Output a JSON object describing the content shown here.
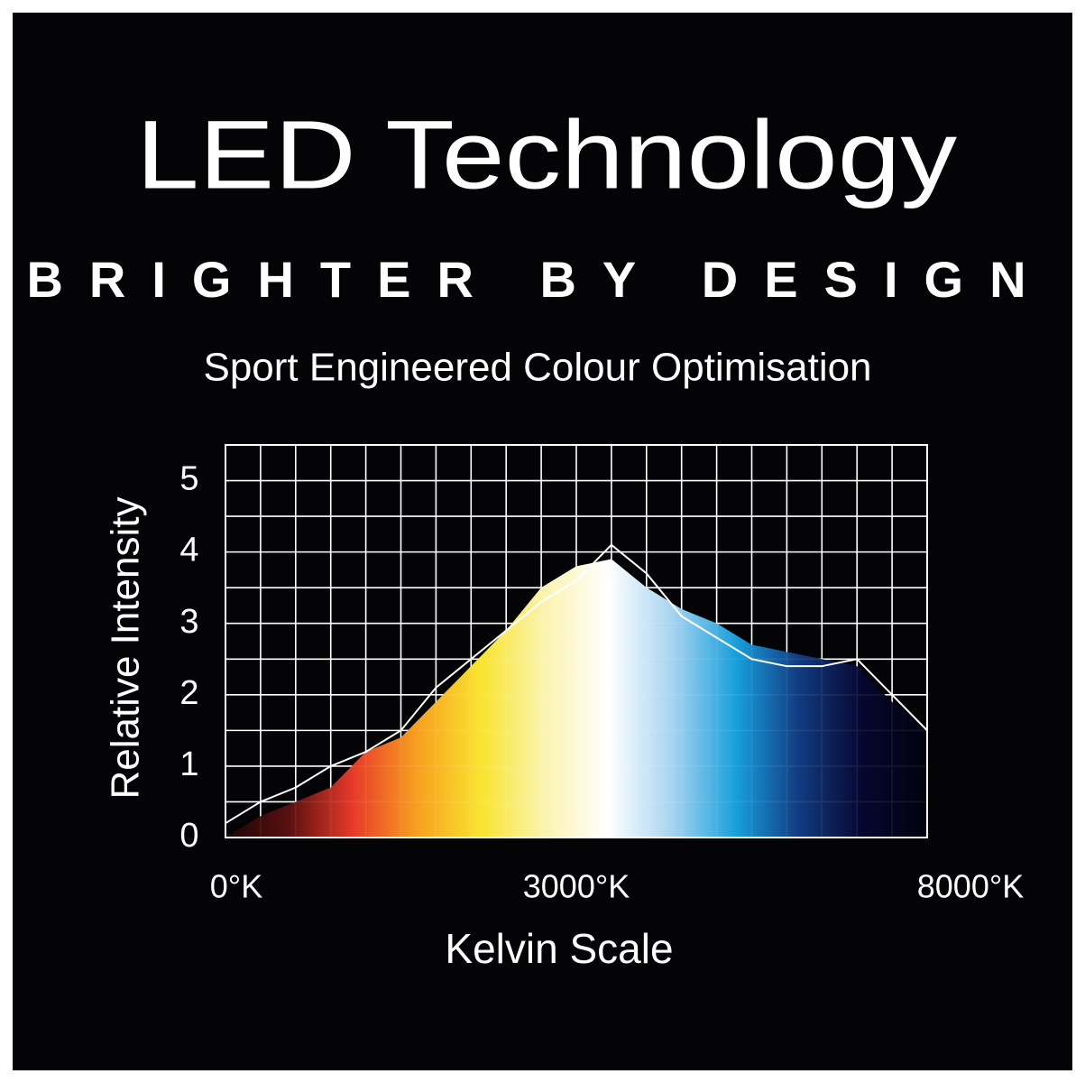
{
  "chart_data": {
    "type": "area",
    "title": "LED Technology",
    "subtitle": "BRIGHTER BY DESIGN",
    "tagline": "Sport Engineered Colour Optimisation",
    "ylabel": "Relative Intensity",
    "xlabel": "Kelvin Scale",
    "categories": [
      "0°K",
      null,
      null,
      null,
      null,
      null,
      null,
      null,
      null,
      null,
      "3000°K",
      null,
      null,
      null,
      null,
      null,
      null,
      null,
      null,
      null,
      "8000°K"
    ],
    "series": [
      {
        "values": [
          0,
          0.3,
          0.5,
          0.7,
          1.2,
          1.4,
          1.9,
          2.4,
          2.9,
          3.5,
          3.8,
          3.9,
          3.5,
          3.2,
          3.0,
          2.7,
          2.6,
          2.5,
          2.4,
          1.9,
          1.5
        ],
        "fill_gradient": [
          "#1a0505",
          "#5a1010",
          "#e83a2a",
          "#f7a020",
          "#f8e430",
          "#fbf3b0",
          "#ffffff",
          "#a8d4f0",
          "#18a0dc",
          "#123a80",
          "#06062e",
          "#02020e"
        ]
      },
      {
        "values": [
          0.2,
          0.5,
          0.7,
          1.0,
          1.2,
          1.5,
          2.1,
          2.5,
          2.9,
          3.3,
          3.6,
          4.1,
          3.7,
          3.1,
          2.8,
          2.5,
          2.4,
          2.4,
          2.5,
          2.0,
          1.5
        ],
        "color": "#ffffff"
      }
    ],
    "ylim": [
      0,
      5.5
    ],
    "yticks": [
      0,
      1,
      2,
      3,
      4,
      5
    ],
    "ygrid": [
      0,
      0.5,
      1,
      1.5,
      2,
      2.5,
      3,
      3.5,
      4,
      4.5,
      5,
      5.5
    ],
    "grid": true
  }
}
